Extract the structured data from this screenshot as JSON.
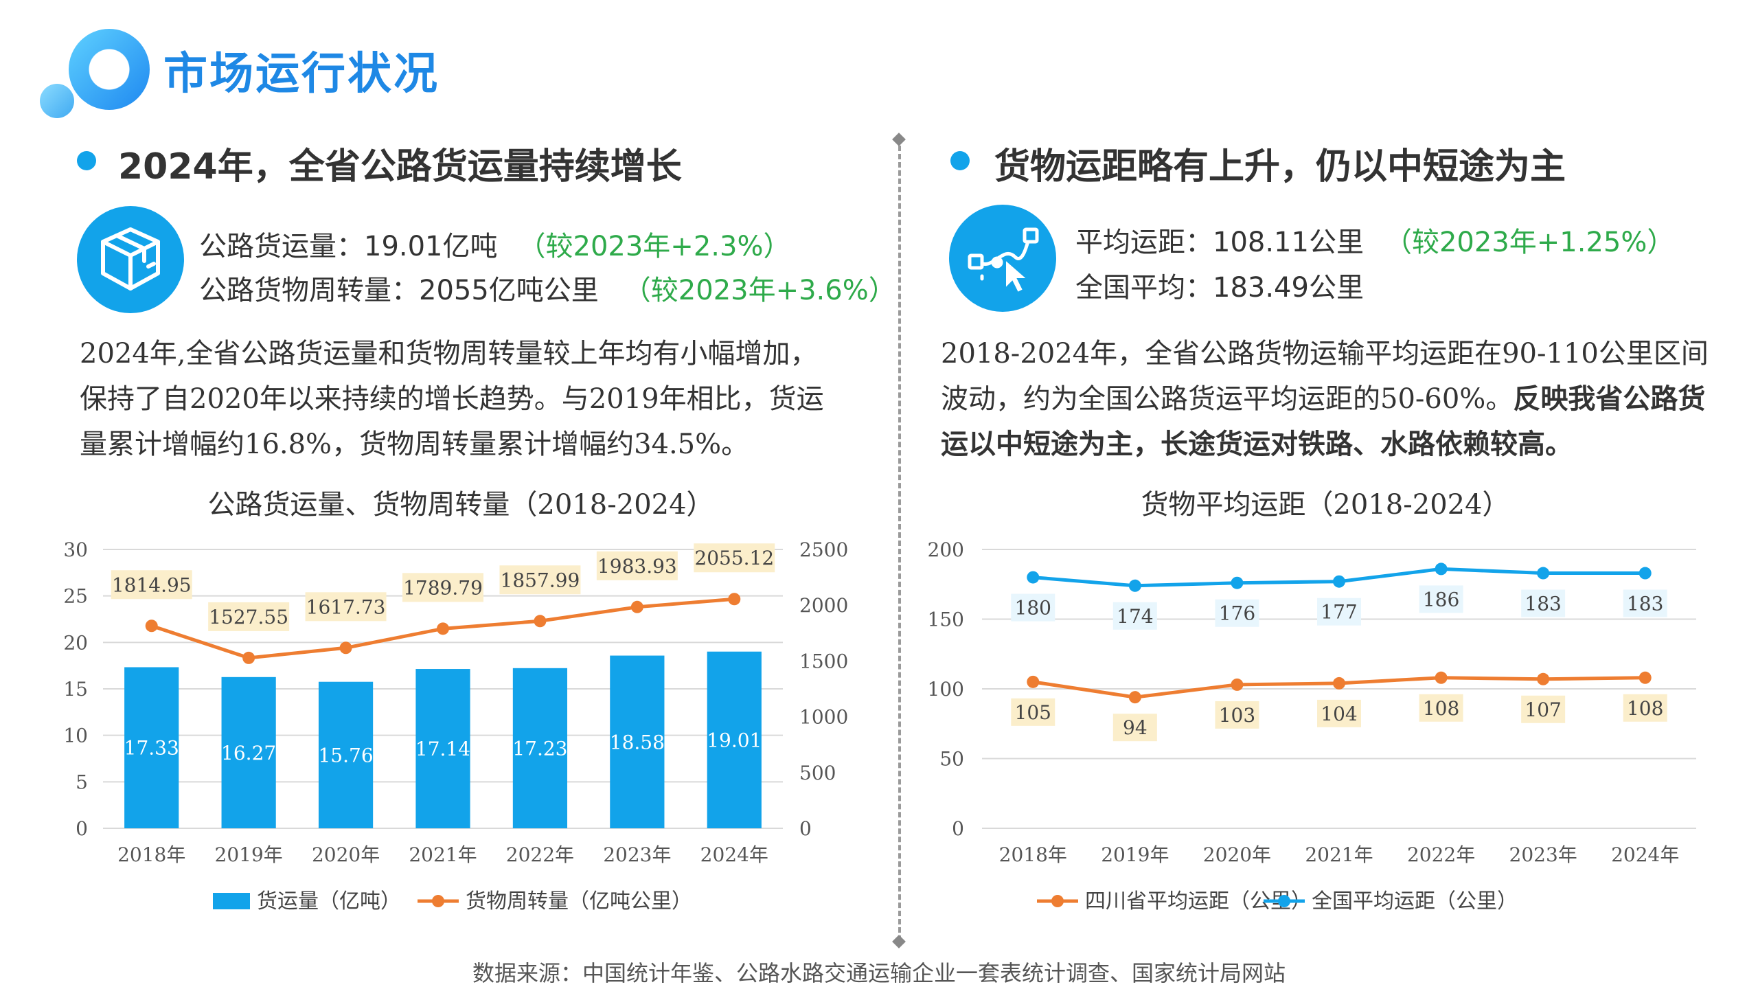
{
  "page_title": "市场运行状况",
  "left": {
    "heading": "2024年，全省公路货运量持续增长",
    "stat1_label": "公路货运量：19.01亿吨",
    "stat1_change": "（较2023年+2.3%）",
    "stat2_label": "公路货物周转量：2055亿吨公里",
    "stat2_change": "（较2023年+3.6%）",
    "paragraph": "2024年,全省公路货运量和货物周转量较上年均有小幅增加，保持了自2020年以来持续的增长趋势。与2019年相比，货运量累计增幅约16.8%，货物周转量累计增幅约34.5%。",
    "icon": "box-icon"
  },
  "right": {
    "heading": "货物运距略有上升，仍以中短途为主",
    "stat1_label": "平均运距：108.11公里",
    "stat1_change": "（较2023年+1.25%）",
    "stat2_label": "全国平均：183.49公里",
    "paragraph_normal": "2018-2024年，全省公路货物运输平均运距在90-110公里区间波动，约为全国公路货运平均运距的50-60%。",
    "paragraph_bold": "反映我省公路货运以中短途为主，长途货运对铁路、水路依赖较高。",
    "icon": "route-cursor-icon"
  },
  "source": "数据来源：中国统计年鉴、公路水路交通运输企业一套表统计调查、国家统计局网站",
  "colors": {
    "blue": "#12a3ea",
    "orange": "#ee7d31",
    "green": "#2eaa4a",
    "label_bg": "#fbeecb"
  },
  "chart_data": [
    {
      "type": "bar+line",
      "title": "公路货运量、货物周转量（2018-2024）",
      "categories": [
        "2018年",
        "2019年",
        "2020年",
        "2021年",
        "2022年",
        "2023年",
        "2024年"
      ],
      "series": [
        {
          "name": "货运量（亿吨）",
          "type": "bar",
          "axis": "left",
          "values": [
            17.33,
            16.27,
            15.76,
            17.14,
            17.23,
            18.58,
            19.01
          ]
        },
        {
          "name": "货物周转量（亿吨公里）",
          "type": "line",
          "axis": "right",
          "values": [
            1814.95,
            1527.55,
            1617.73,
            1789.79,
            1857.99,
            1983.93,
            2055.12
          ]
        }
      ],
      "y_left": {
        "min": 0,
        "max": 30,
        "ticks": [
          0,
          5,
          10,
          15,
          20,
          25,
          30
        ]
      },
      "y_right": {
        "min": 0,
        "max": 2500,
        "ticks": [
          0,
          500,
          1000,
          1500,
          2000,
          2500
        ]
      },
      "grid": true,
      "legend": "bottom"
    },
    {
      "type": "line",
      "title": "货物平均运距（2018-2024）",
      "categories": [
        "2018年",
        "2019年",
        "2020年",
        "2021年",
        "2022年",
        "2023年",
        "2024年"
      ],
      "series": [
        {
          "name": "四川省平均运距（公里）",
          "values": [
            105,
            94,
            103,
            104,
            108,
            107,
            108
          ]
        },
        {
          "name": "全国平均运距（公里）",
          "values": [
            180,
            174,
            176,
            177,
            186,
            183,
            183
          ]
        }
      ],
      "y": {
        "min": 0,
        "max": 200,
        "ticks": [
          0,
          50,
          100,
          150,
          200
        ]
      },
      "grid": true,
      "legend": "bottom"
    }
  ]
}
